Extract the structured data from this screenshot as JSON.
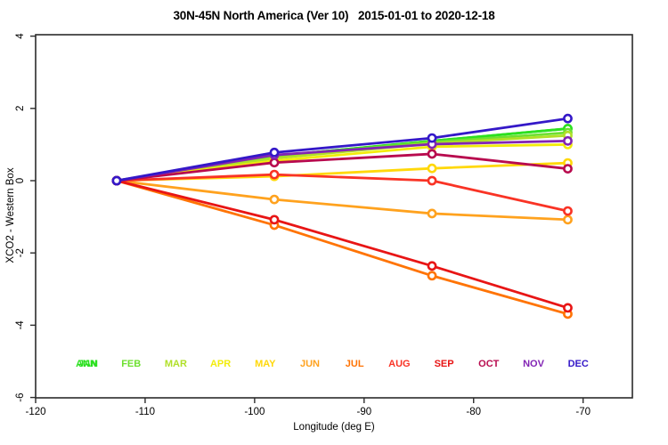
{
  "title": "30N-45N North America (Ver 10)   2015-01-01 to 2020-12-18",
  "chart_data": {
    "type": "line",
    "title": "30N-45N North America (Ver 10)   2015-01-01 to 2020-12-18",
    "xlabel": "Longitude (deg E)",
    "ylabel": "XCO2 - Western Box",
    "xlim": [
      -120,
      -65.5
    ],
    "ylim": [
      -6,
      4
    ],
    "xticks": [
      -120,
      -110,
      -100,
      -90,
      -80,
      -70
    ],
    "yticks": [
      -6,
      -4,
      -2,
      0,
      2,
      4
    ],
    "grid": false,
    "marker_style": "open-circle",
    "x": [
      -112.6,
      -98.2,
      -83.8,
      -71.4
    ],
    "series": [
      {
        "name": "ANN",
        "color": "#2ce020",
        "values": [
          0,
          0.68,
          1.1,
          1.44
        ]
      },
      {
        "name": "JAN",
        "color": "#2ce020",
        "values": [
          0,
          0.68,
          1.1,
          1.44
        ]
      },
      {
        "name": "FEB",
        "color": "#6ee030",
        "values": [
          0,
          0.66,
          1.07,
          1.33
        ]
      },
      {
        "name": "MAR",
        "color": "#b0e028",
        "values": [
          0,
          0.62,
          1.03,
          1.25
        ]
      },
      {
        "name": "APR",
        "color": "#f2ec0c",
        "values": [
          0,
          0.55,
          0.94,
          1.0
        ]
      },
      {
        "name": "MAY",
        "color": "#ffd80a",
        "values": [
          0,
          0.12,
          0.34,
          0.49
        ]
      },
      {
        "name": "JUN",
        "color": "#ffa21e",
        "values": [
          0,
          -0.52,
          -0.91,
          -1.08
        ]
      },
      {
        "name": "JUL",
        "color": "#ff7405",
        "values": [
          0,
          -1.23,
          -2.63,
          -3.69
        ]
      },
      {
        "name": "AUG",
        "color": "#f93325",
        "values": [
          0,
          0.17,
          0.0,
          -0.84
        ]
      },
      {
        "name": "SEP",
        "color": "#e81515",
        "values": [
          0,
          -1.08,
          -2.36,
          -3.52
        ]
      },
      {
        "name": "OCT",
        "color": "#b80a4e",
        "values": [
          0,
          0.5,
          0.74,
          0.33
        ]
      },
      {
        "name": "NOV",
        "color": "#8224b4",
        "values": [
          0,
          0.71,
          1.01,
          1.1
        ]
      },
      {
        "name": "DEC",
        "color": "#3418c8",
        "values": [
          0,
          0.78,
          1.18,
          1.72
        ]
      }
    ],
    "legend": {
      "position": "bottom-inside",
      "items": [
        {
          "label": "ANN",
          "slot": 0
        },
        {
          "label": "JAN",
          "slot": 0
        },
        {
          "label": "FEB",
          "slot": 1
        },
        {
          "label": "MAR",
          "slot": 2
        },
        {
          "label": "APR",
          "slot": 3
        },
        {
          "label": "MAY",
          "slot": 4
        },
        {
          "label": "JUN",
          "slot": 5
        },
        {
          "label": "JUL",
          "slot": 6
        },
        {
          "label": "AUG",
          "slot": 7
        },
        {
          "label": "SEP",
          "slot": 8
        },
        {
          "label": "OCT",
          "slot": 9
        },
        {
          "label": "NOV",
          "slot": 10
        },
        {
          "label": "DEC",
          "slot": 11
        }
      ]
    }
  }
}
